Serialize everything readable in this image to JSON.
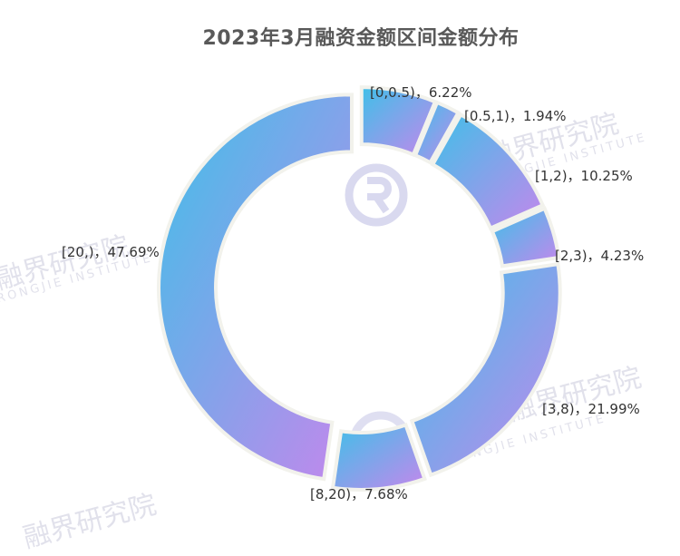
{
  "chart_data": {
    "type": "pie",
    "title": "2023年3月融资金额区间金额分布",
    "categories": [
      "[0,0.5)",
      "[0.5,1)",
      "[1,2)",
      "[2,3)",
      "[3,8)",
      "[8,20)",
      "[20,)"
    ],
    "values": [
      6.22,
      1.94,
      10.25,
      4.23,
      21.99,
      7.68,
      47.69
    ],
    "labels": [
      "[0,0.5)，6.22%",
      "[0.5,1)，1.94%",
      "[1,2)，10.25%",
      "[2,3)，4.23%",
      "[3,8)，21.99%",
      "[8,20)，7.68%",
      "[20,)，47.69%"
    ],
    "unit": "%",
    "gradient_colors": [
      "#3fc0e8",
      "#c487ec"
    ],
    "border_color": "#f2f2ec"
  },
  "watermark": {
    "cn": "融界研究院",
    "en": "RONGJIE INSTITUTE",
    "color": "#c9c9dc"
  }
}
